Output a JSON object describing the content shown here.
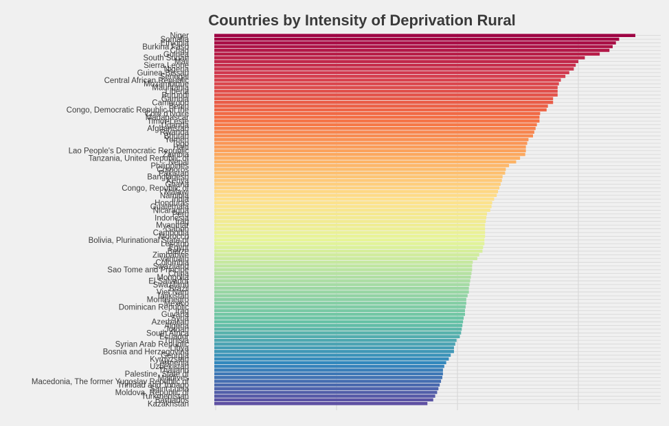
{
  "chart_data": {
    "type": "bar",
    "orientation": "horizontal",
    "title": "Countries by Intensity of Deprivation Rural",
    "xlabel": "",
    "ylabel": "",
    "xlim": [
      0,
      65
    ],
    "grid": true,
    "legend": "none",
    "color_scale": "spectral",
    "colors": [
      "#9e0142",
      "#d53e4f",
      "#f46d43",
      "#fdae61",
      "#fee08b",
      "#e6f598",
      "#abdda4",
      "#66c2a5",
      "#3288bd",
      "#5e4fa2"
    ],
    "categories": [
      "Niger",
      "Somalia",
      "Ethiopia",
      "Burkina Faso",
      "Chad",
      "Guinea",
      "South Sudan",
      "Mali",
      "Sierra Leone",
      "Nigeria",
      "Guinea-Bissau",
      "Senegal",
      "Central African Republic",
      "Mozambique",
      "Mauritania",
      "Liberia",
      "Burundi",
      "Gambia",
      "Cameroon",
      "Benin",
      "Congo, Democratic Republic of the",
      "Cote d'Ivoire",
      "Madagascar",
      "Timor-Leste",
      "Uganda",
      "Afghanistan",
      "Rwanda",
      "Bhutan",
      "Yemen",
      "Togo",
      "Haiti",
      "Lao People's Democratic Republic",
      "Zambia",
      "Tanzania, United Republic of",
      "Nepal",
      "Philippines",
      "Comoros",
      "Pakistan",
      "Bangladesh",
      "Kenya",
      "Ghana",
      "Congo, Republic of",
      "Malawi",
      "Namibia",
      "India",
      "Honduras",
      "Guatemala",
      "Nicaragua",
      "Peru",
      "Indonesia",
      "Iraq",
      "Myanmar",
      "Gabon",
      "Cambodia",
      "Morocco",
      "Bolivia, Plurinational State of",
      "Lesotho",
      "Egypt",
      "Belize",
      "Zimbabwe",
      "Vanuatu",
      "Colombia",
      "Swaziland",
      "Sao Tome and Principe",
      "China",
      "Mongolia",
      "El Salvador",
      "Swaziland",
      "Brazil",
      "Viet Nam",
      "Tajikistan",
      "Montenegro",
      "Mexico",
      "Dominican Republic",
      "Iraq",
      "Guyana",
      "Syria",
      "Azerbaijan",
      "Algeria",
      "Jordan",
      "South Africa",
      "Ecuador",
      "Tunisia",
      "Syrian Arab Republic",
      "Libya",
      "Bosnia and Herzegovina",
      "Georgia",
      "Kyrgyzstan",
      "Armenia",
      "Uzbekistan",
      "Thailand",
      "Palestine, State of",
      "Maldives",
      "Macedonia, The former Yugoslav Republic of",
      "Trinidad and Tobago",
      "Saint Lucia",
      "Moldova, Republic of",
      "Turkmenistan",
      "Barbados",
      "Kazakhstan"
    ],
    "values": [
      65.0,
      62.5,
      62.0,
      61.5,
      61.0,
      59.5,
      57.2,
      56.2,
      55.8,
      55.5,
      54.8,
      54.2,
      53.5,
      53.2,
      53.0,
      53.0,
      53.0,
      52.3,
      52.3,
      51.5,
      51.3,
      50.3,
      50.2,
      50.2,
      49.8,
      49.6,
      49.4,
      49.2,
      48.5,
      48.3,
      48.1,
      48.1,
      48.0,
      47.2,
      46.6,
      45.5,
      45.0,
      44.9,
      44.5,
      44.4,
      44.2,
      44.0,
      43.8,
      43.6,
      43.2,
      42.9,
      42.8,
      42.6,
      42.1,
      42.0,
      41.9,
      41.8,
      41.8,
      41.8,
      41.8,
      41.7,
      41.7,
      41.5,
      41.4,
      40.9,
      40.6,
      39.9,
      39.8,
      39.8,
      39.7,
      39.6,
      39.5,
      39.4,
      39.3,
      39.3,
      39.1,
      38.9,
      38.9,
      38.8,
      38.7,
      38.7,
      38.5,
      38.4,
      38.3,
      38.2,
      38.1,
      37.9,
      37.4,
      37.2,
      37.0,
      37.0,
      36.5,
      36.2,
      35.8,
      35.5,
      35.3,
      35.3,
      35.2,
      35.0,
      34.8,
      34.6,
      34.4,
      34.1,
      33.8,
      32.9
    ]
  }
}
